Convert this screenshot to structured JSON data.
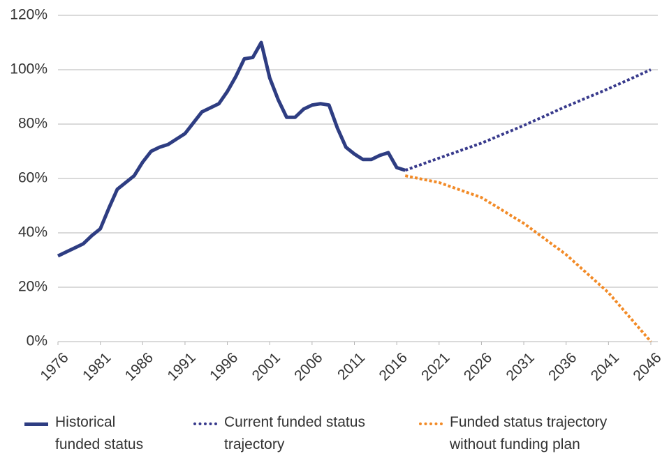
{
  "chart_data": {
    "type": "line",
    "xlim": [
      1976,
      2046
    ],
    "xticks": [
      1976,
      1981,
      1986,
      1991,
      1996,
      2001,
      2006,
      2011,
      2016,
      2021,
      2026,
      2031,
      2036,
      2041,
      2046
    ],
    "ylim": [
      0,
      120
    ],
    "yticks": [
      {
        "value": 0,
        "label": "0%"
      },
      {
        "value": 20,
        "label": "20%"
      },
      {
        "value": 40,
        "label": "40%"
      },
      {
        "value": 60,
        "label": "60%"
      },
      {
        "value": 80,
        "label": "80%"
      },
      {
        "value": 100,
        "label": "100%"
      },
      {
        "value": 120,
        "label": "120%"
      }
    ],
    "grid": true,
    "legend": "bottom",
    "series": [
      {
        "name": "Historical funded status",
        "color": "#2e3d82",
        "style": "solid",
        "x": [
          1976,
          1977,
          1978,
          1979,
          1980,
          1981,
          1982,
          1983,
          1984,
          1985,
          1986,
          1987,
          1988,
          1989,
          1990,
          1991,
          1992,
          1993,
          1994,
          1995,
          1996,
          1997,
          1998,
          1999,
          2000,
          2001,
          2002,
          2003,
          2004,
          2005,
          2006,
          2007,
          2008,
          2009,
          2010,
          2011,
          2012,
          2013,
          2014,
          2015,
          2016,
          2017
        ],
        "values": [
          31.5,
          33,
          34.5,
          36,
          39,
          41.5,
          49,
          56,
          58.5,
          61,
          66,
          70,
          71.5,
          72.5,
          74.5,
          76.5,
          80.5,
          84.5,
          86,
          87.5,
          92,
          97.5,
          104,
          104.5,
          110,
          97,
          89,
          82.5,
          82.5,
          85.5,
          87,
          87.5,
          87,
          78.5,
          71.5,
          69,
          67,
          67,
          68.5,
          69.5,
          64,
          63
        ]
      },
      {
        "name": "Current funded status trajectory",
        "color": "#383a8c",
        "style": "dotted",
        "x": [
          2017,
          2021,
          2026,
          2031,
          2036,
          2041,
          2046
        ],
        "values": [
          63,
          67.5,
          73,
          79.5,
          86.5,
          93,
          100
        ]
      },
      {
        "name": "Funded status trajectory without funding plan",
        "color": "#f28a26",
        "style": "dotted",
        "x": [
          2017,
          2021,
          2026,
          2031,
          2036,
          2041,
          2046
        ],
        "values": [
          61,
          58.5,
          53,
          43.5,
          32,
          18,
          0
        ]
      }
    ]
  }
}
